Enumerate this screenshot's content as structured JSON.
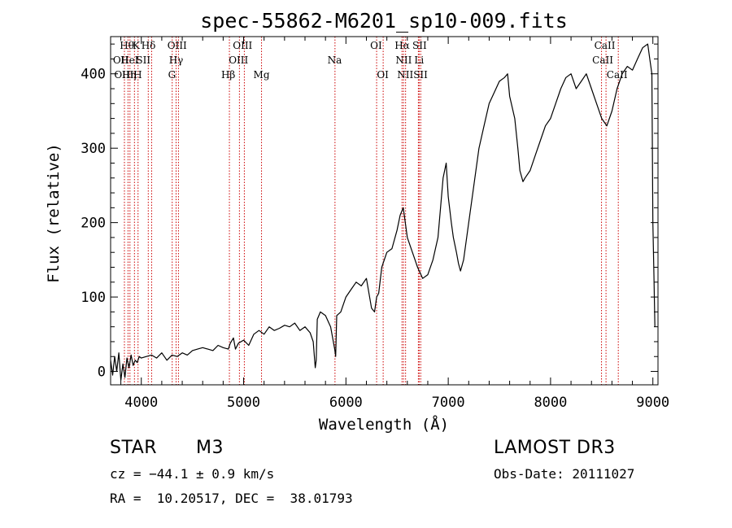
{
  "chart_data": {
    "type": "line",
    "title": "spec-55862-M6201_sp10-009.fits",
    "xlabel": "Wavelength (Å)",
    "ylabel": "Flux (relative)",
    "xlim": [
      3700,
      9050
    ],
    "ylim": [
      -18,
      450
    ],
    "xticks": [
      4000,
      5000,
      6000,
      7000,
      8000,
      9000
    ],
    "yticks": [
      0,
      100,
      200,
      300,
      400
    ],
    "grid": false,
    "series": [
      {
        "name": "spectrum",
        "x": [
          3700,
          3720,
          3740,
          3760,
          3780,
          3800,
          3820,
          3840,
          3860,
          3880,
          3900,
          3920,
          3940,
          3960,
          3980,
          4000,
          4050,
          4100,
          4150,
          4200,
          4250,
          4300,
          4350,
          4400,
          4450,
          4500,
          4550,
          4600,
          4650,
          4700,
          4750,
          4800,
          4850,
          4870,
          4900,
          4920,
          4950,
          5000,
          5050,
          5100,
          5150,
          5200,
          5250,
          5300,
          5350,
          5400,
          5450,
          5500,
          5550,
          5600,
          5650,
          5680,
          5700,
          5710,
          5720,
          5750,
          5800,
          5850,
          5870,
          5890,
          5900,
          5910,
          5950,
          6000,
          6050,
          6100,
          6150,
          6200,
          6250,
          6280,
          6300,
          6320,
          6350,
          6400,
          6450,
          6500,
          6530,
          6560,
          6580,
          6600,
          6650,
          6700,
          6750,
          6800,
          6850,
          6900,
          6950,
          6980,
          7000,
          7030,
          7050,
          7080,
          7100,
          7120,
          7150,
          7200,
          7250,
          7300,
          7350,
          7400,
          7450,
          7500,
          7550,
          7580,
          7600,
          7650,
          7680,
          7700,
          7730,
          7750,
          7800,
          7850,
          7900,
          7950,
          8000,
          8050,
          8100,
          8150,
          8200,
          8250,
          8300,
          8350,
          8400,
          8450,
          8500,
          8550,
          8600,
          8650,
          8700,
          8750,
          8800,
          8850,
          8900,
          8950,
          8970,
          8990,
          9000,
          9010,
          9020
        ],
        "y": [
          15,
          -5,
          20,
          0,
          25,
          -12,
          10,
          -8,
          18,
          5,
          22,
          8,
          15,
          12,
          20,
          18,
          20,
          22,
          18,
          25,
          15,
          22,
          20,
          25,
          22,
          28,
          30,
          32,
          30,
          28,
          35,
          32,
          30,
          38,
          45,
          30,
          38,
          42,
          35,
          50,
          55,
          50,
          60,
          55,
          58,
          62,
          60,
          65,
          55,
          60,
          52,
          40,
          5,
          15,
          70,
          80,
          75,
          60,
          45,
          30,
          20,
          75,
          80,
          100,
          110,
          120,
          115,
          125,
          85,
          80,
          100,
          105,
          140,
          160,
          165,
          190,
          210,
          220,
          200,
          180,
          160,
          140,
          125,
          130,
          150,
          180,
          260,
          280,
          235,
          200,
          180,
          160,
          145,
          135,
          150,
          200,
          250,
          300,
          330,
          360,
          375,
          390,
          395,
          400,
          370,
          340,
          300,
          270,
          255,
          260,
          270,
          290,
          310,
          330,
          340,
          360,
          380,
          395,
          400,
          380,
          390,
          400,
          380,
          360,
          340,
          330,
          350,
          380,
          400,
          410,
          405,
          420,
          435,
          440,
          420,
          400,
          200,
          130,
          60
        ]
      }
    ],
    "lines": [
      {
        "wl": 3835,
        "labels": []
      },
      {
        "wl": 3870,
        "labels": [
          "OII"
        ]
      },
      {
        "wl": 3889,
        "labels": [
          "Hθ",
          "HeI"
        ]
      },
      {
        "wl": 3933,
        "labels": [
          "K"
        ]
      },
      {
        "wl": 3968,
        "labels": [
          "H"
        ]
      },
      {
        "wl": 4068,
        "labels": [
          "SII"
        ]
      },
      {
        "wl": 4101,
        "labels": [
          "Hδ"
        ]
      },
      {
        "wl": 4302,
        "labels": [
          "G"
        ]
      },
      {
        "wl": 4340,
        "labels": [
          "Hγ"
        ]
      },
      {
        "wl": 4363,
        "labels": [
          "OIII"
        ]
      },
      {
        "wl": 4861,
        "labels": [
          "Hβ"
        ]
      },
      {
        "wl": 4959,
        "labels": [
          "OIII"
        ]
      },
      {
        "wl": 5007,
        "labels": [
          "OIII"
        ]
      },
      {
        "wl": 5175,
        "labels": [
          "Mg"
        ]
      },
      {
        "wl": 5893,
        "labels": [
          "Na"
        ]
      },
      {
        "wl": 6300,
        "labels": [
          "OI"
        ]
      },
      {
        "wl": 6364,
        "labels": [
          "OI"
        ]
      },
      {
        "wl": 6548,
        "labels": [
          "NII"
        ]
      },
      {
        "wl": 6563,
        "labels": [
          "Hα"
        ]
      },
      {
        "wl": 6583,
        "labels": [
          "NII"
        ]
      },
      {
        "wl": 6708,
        "labels": [
          "Li"
        ]
      },
      {
        "wl": 6716,
        "labels": [
          "SII"
        ]
      },
      {
        "wl": 6731,
        "labels": [
          "SII"
        ]
      },
      {
        "wl": 8498,
        "labels": [
          "CaII"
        ]
      },
      {
        "wl": 8542,
        "labels": [
          "CaII"
        ]
      },
      {
        "wl": 8662,
        "labels": [
          "CaII"
        ]
      }
    ],
    "line_color": "#cc0000",
    "line_labels": [
      {
        "text": "Hθ",
        "wl": 3860,
        "row": 0
      },
      {
        "text": "K",
        "wl": 3950,
        "row": 0
      },
      {
        "text": "Hδ",
        "wl": 4070,
        "row": 0
      },
      {
        "text": "OIII",
        "wl": 4350,
        "row": 0
      },
      {
        "text": "OIII",
        "wl": 4990,
        "row": 0
      },
      {
        "text": "OI",
        "wl": 6295,
        "row": 0
      },
      {
        "text": "Hα",
        "wl": 6550,
        "row": 0
      },
      {
        "text": "SII",
        "wl": 6720,
        "row": 0
      },
      {
        "text": "CaII",
        "wl": 8530,
        "row": 0
      },
      {
        "text": "OII",
        "wl": 3800,
        "row": 1
      },
      {
        "text": "HeI",
        "wl": 3885,
        "row": 1
      },
      {
        "text": "SII",
        "wl": 4020,
        "row": 1
      },
      {
        "text": "Hγ",
        "wl": 4340,
        "row": 1
      },
      {
        "text": "OIII",
        "wl": 4950,
        "row": 1
      },
      {
        "text": "Na",
        "wl": 5890,
        "row": 1
      },
      {
        "text": "NII",
        "wl": 6565,
        "row": 1
      },
      {
        "text": "Li",
        "wl": 6715,
        "row": 1
      },
      {
        "text": "CaII",
        "wl": 8510,
        "row": 1
      },
      {
        "text": "OIII",
        "wl": 3830,
        "row": 2
      },
      {
        "text": "Hη",
        "wl": 3880,
        "row": 2
      },
      {
        "text": "H",
        "wl": 3965,
        "row": 2
      },
      {
        "text": "G",
        "wl": 4300,
        "row": 2
      },
      {
        "text": "Hβ",
        "wl": 4850,
        "row": 2
      },
      {
        "text": "Mg",
        "wl": 5175,
        "row": 2
      },
      {
        "text": "OI",
        "wl": 6360,
        "row": 2
      },
      {
        "text": "NIISII",
        "wl": 6650,
        "row": 2
      },
      {
        "text": "CaII",
        "wl": 8650,
        "row": 2
      }
    ]
  },
  "info": {
    "object_class": "STAR",
    "subclass": "M3",
    "survey": "LAMOST DR3",
    "redshift": "cz = −44.1 ± 0.9 km/s",
    "obs_date": "Obs-Date: 20111027",
    "coords": "RA =  10.20517, DEC =  38.01793"
  }
}
